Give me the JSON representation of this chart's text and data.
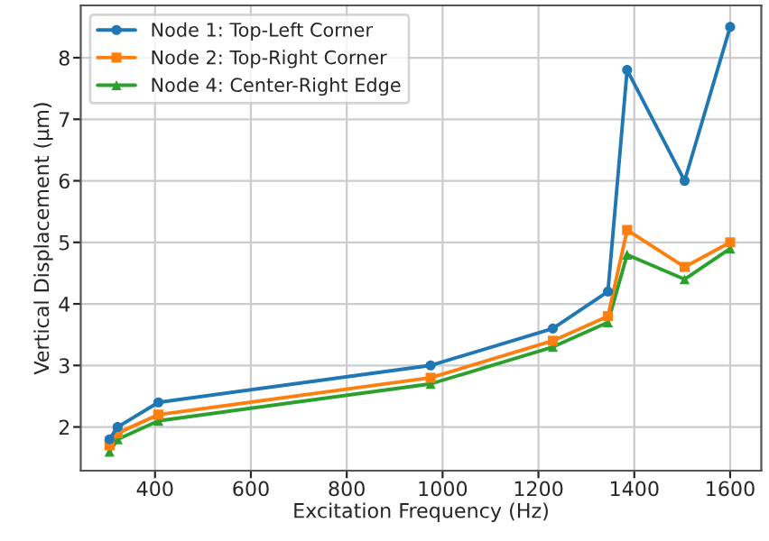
{
  "chart_data": {
    "type": "line",
    "xlabel": "Excitation Frequency (Hz)",
    "ylabel": "Vertical Displacement (μm)",
    "x": [
      305,
      322,
      407,
      975,
      1230,
      1345,
      1385,
      1505,
      1600
    ],
    "series": [
      {
        "name": "Node 1: Top-Left Corner",
        "color": "#1f77b4",
        "marker": "circle",
        "values": [
          1.8,
          2.0,
          2.4,
          3.0,
          3.6,
          4.2,
          7.8,
          6.0,
          8.5
        ]
      },
      {
        "name": "Node 2: Top-Right Corner",
        "color": "#ff7f0e",
        "marker": "square",
        "values": [
          1.7,
          1.9,
          2.2,
          2.8,
          3.4,
          3.8,
          5.2,
          4.6,
          5.0
        ]
      },
      {
        "name": "Node 4: Center-Right Edge",
        "color": "#2ca02c",
        "marker": "triangle",
        "values": [
          1.6,
          1.8,
          2.1,
          2.7,
          3.3,
          3.7,
          4.8,
          4.4,
          4.9
        ]
      }
    ],
    "xlim": [
      245,
      1665
    ],
    "ylim": [
      1.29,
      8.85
    ],
    "xticks": [
      400,
      600,
      800,
      1000,
      1200,
      1400,
      1600
    ],
    "yticks": [
      2,
      3,
      4,
      5,
      6,
      7,
      8
    ],
    "grid": true,
    "legend": "top left",
    "line_style": "solid"
  }
}
